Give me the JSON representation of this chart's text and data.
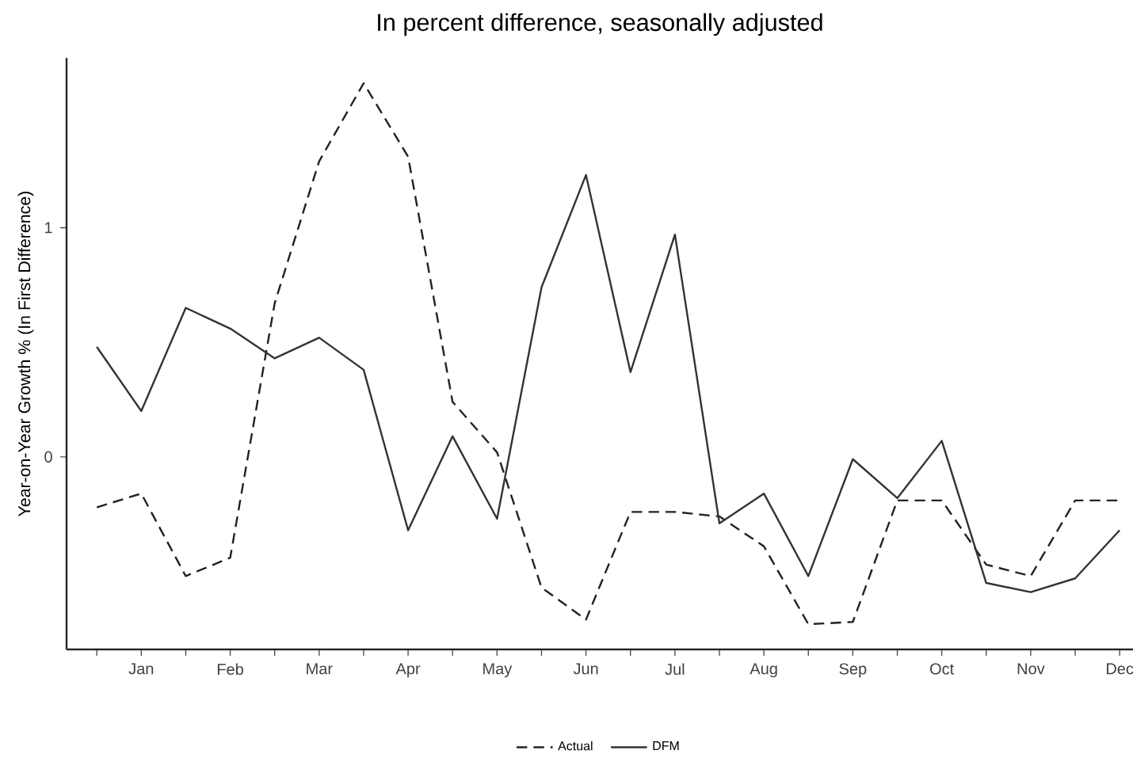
{
  "chart_data": {
    "type": "line",
    "subtitle": "In percent difference, seasonally adjusted",
    "ylabel": "Year-on-Year Growth % (In First Difference)",
    "categories": [
      null,
      "Jan",
      null,
      "Feb",
      null,
      "Mar",
      null,
      "Apr",
      null,
      "May",
      null,
      "Jun",
      null,
      "Jul",
      null,
      "Aug",
      null,
      "Sep",
      null,
      "Oct",
      null,
      "Nov",
      null,
      "Dec"
    ],
    "ylim": [
      -0.84,
      1.74
    ],
    "yticks": [
      0,
      1
    ],
    "legend": "bottom",
    "series": [
      {
        "name": "Actual",
        "color": "#222222",
        "line_style": "dashed",
        "values": [
          -0.22,
          -0.16,
          -0.52,
          -0.44,
          0.67,
          1.29,
          1.63,
          1.31,
          0.24,
          0.02,
          -0.57,
          -0.71,
          -0.24,
          -0.24,
          -0.26,
          -0.39,
          -0.73,
          -0.72,
          -0.19,
          -0.19,
          -0.47,
          -0.52,
          -0.19,
          -0.19
        ]
      },
      {
        "name": "DFM",
        "color": "#333333",
        "line_style": "solid",
        "values": [
          0.48,
          0.2,
          0.65,
          0.56,
          0.43,
          0.52,
          0.38,
          -0.32,
          0.09,
          -0.27,
          0.74,
          1.23,
          0.37,
          0.97,
          -0.29,
          -0.16,
          -0.52,
          -0.01,
          -0.18,
          0.07,
          -0.55,
          -0.59,
          -0.53,
          -0.32
        ]
      }
    ]
  }
}
